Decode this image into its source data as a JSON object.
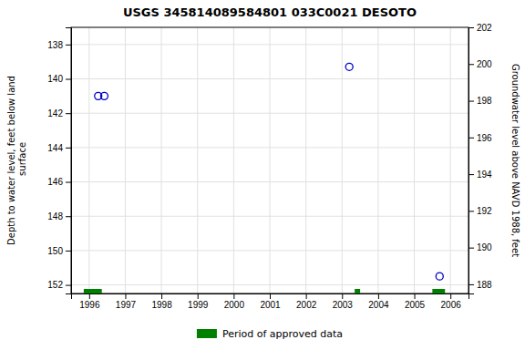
{
  "chart_data": {
    "type": "scatter",
    "title": "USGS 345814089584801 033C0021  DESOTO",
    "y_label": "Depth to water level, feet below land\n surface",
    "y2_label": "Groundwater level above NAVD 1988, feet",
    "xlim": [
      1995.5,
      2006.5
    ],
    "xticks": [
      1996,
      1997,
      1998,
      1999,
      2000,
      2001,
      2002,
      2003,
      2004,
      2005,
      2006
    ],
    "ylim": [
      152.5,
      137
    ],
    "yticks": [
      138,
      140,
      142,
      144,
      146,
      148,
      150,
      152
    ],
    "y2lim": [
      187.5,
      202
    ],
    "y2ticks": [
      202,
      200,
      198,
      196,
      194,
      192,
      190,
      188
    ],
    "grid": true,
    "legend": "bottom",
    "series": [
      {
        "type": "scatter",
        "color": "#0000cc",
        "marker": "circle-open",
        "x": [
          1996.25,
          1996.42,
          2003.2,
          2005.7
        ],
        "values": [
          141.0,
          141.0,
          139.3,
          151.5
        ]
      },
      {
        "type": "range",
        "name": "Period of approved data",
        "color": "#008000",
        "x_start": [
          1995.85,
          2003.35,
          2005.5
        ],
        "x_end": [
          1996.35,
          2003.5,
          2005.85
        ]
      }
    ]
  }
}
